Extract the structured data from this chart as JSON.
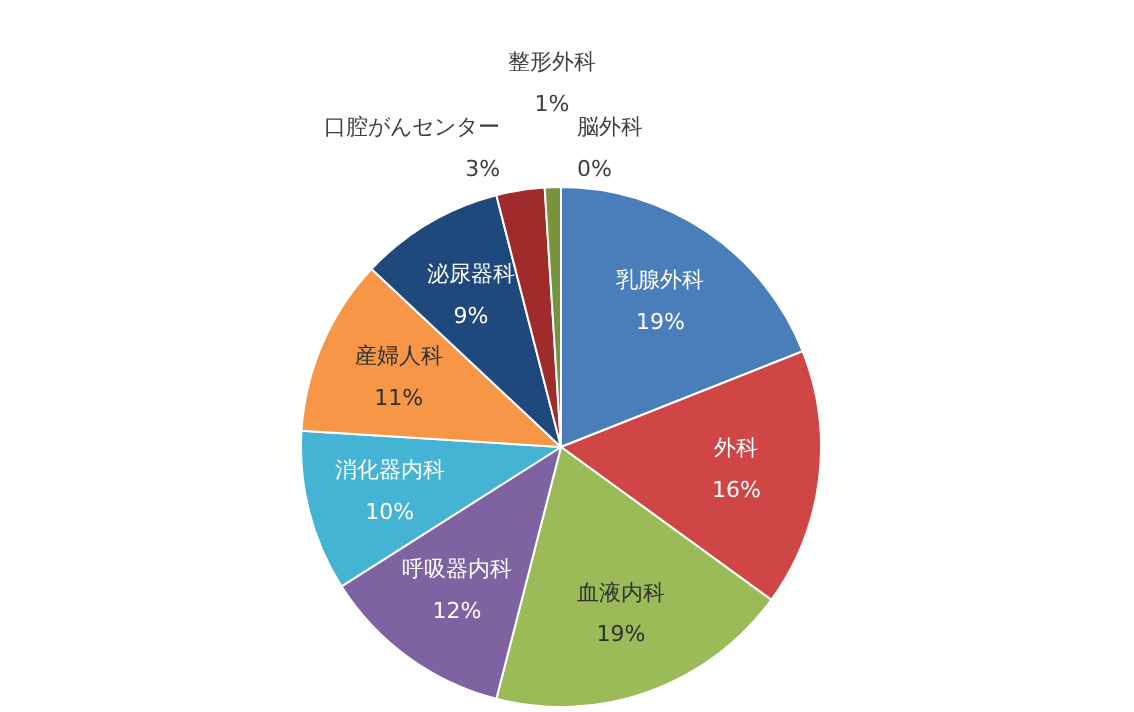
{
  "chart_data": {
    "type": "pie",
    "categories": [
      "乳腺外科",
      "外科",
      "血液内科",
      "呼吸器内科",
      "消化器内科",
      "産婦人科",
      "泌尿器科",
      "口腔がんセンター",
      "整形外科",
      "脳外科"
    ],
    "values": [
      19,
      16,
      19,
      12,
      10,
      11,
      9,
      3,
      1,
      0
    ],
    "value_labels": [
      "19%",
      "16%",
      "19%",
      "12%",
      "10%",
      "11%",
      "9%",
      "3%",
      "1%",
      "0%"
    ],
    "colors": [
      "#4a7ebb",
      "#d04545",
      "#9bbb59",
      "#7e62a1",
      "#45b3d3",
      "#f79646",
      "#1f497d",
      "#a02b2b",
      "#77933c",
      "#604a7b"
    ]
  }
}
